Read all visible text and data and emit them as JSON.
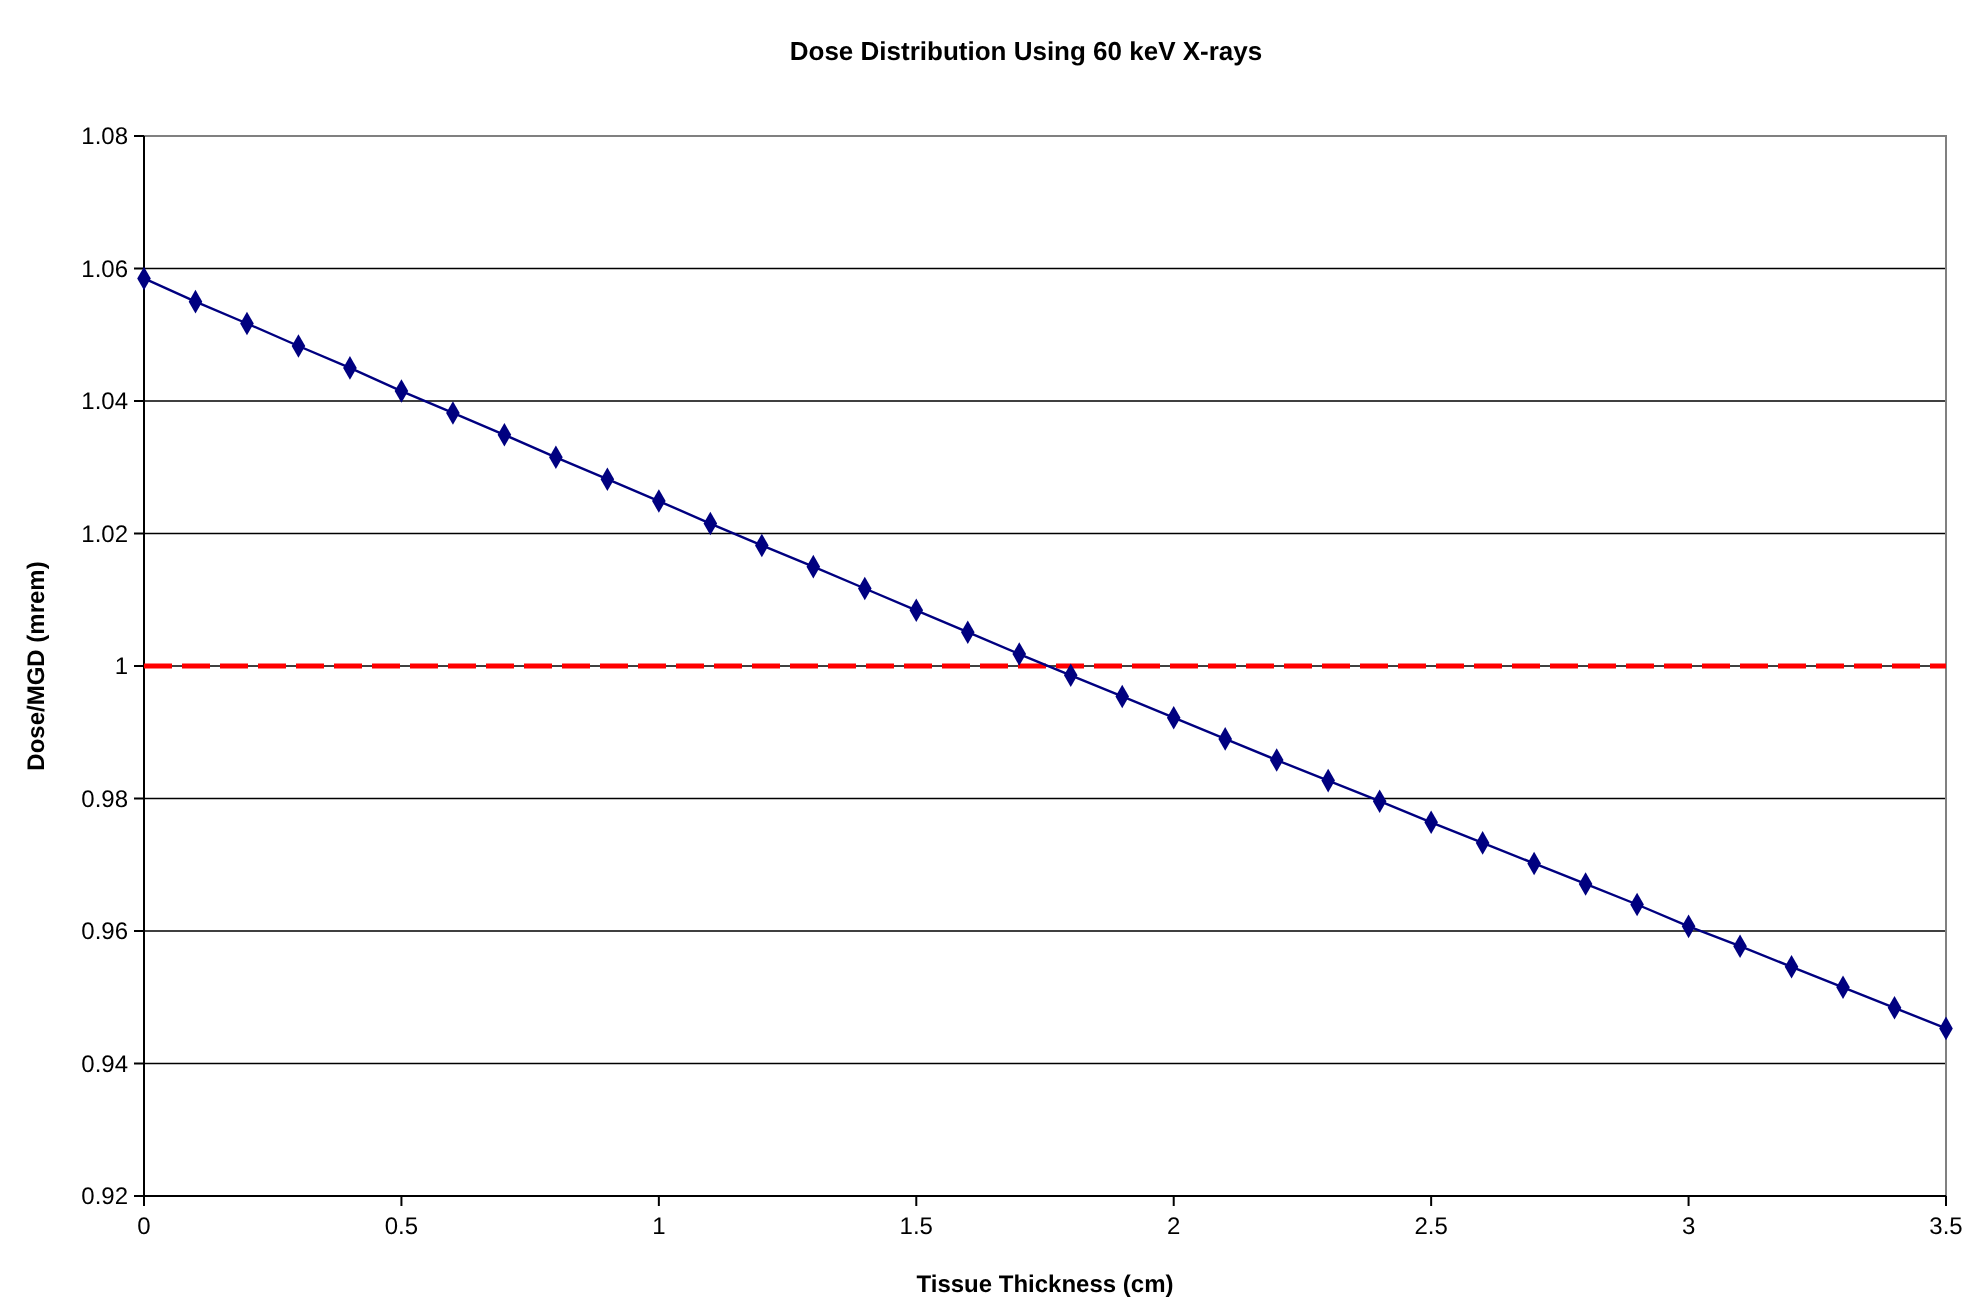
{
  "chart_data": {
    "type": "line",
    "title": "Dose Distribution Using 60 keV X-rays",
    "xlabel": "Tissue Thickness (cm)",
    "ylabel": "Dose/MGD (mrem)",
    "x": [
      0,
      0.1,
      0.2,
      0.3,
      0.4,
      0.5,
      0.6,
      0.7,
      0.8,
      0.9,
      1.0,
      1.1,
      1.2,
      1.3,
      1.4,
      1.5,
      1.6,
      1.7,
      1.8,
      1.9,
      2.0,
      2.1,
      2.2,
      2.3,
      2.4,
      2.5,
      2.6,
      2.7,
      2.8,
      2.9,
      3.0,
      3.1,
      3.2,
      3.3,
      3.4,
      3.5
    ],
    "series": [
      {
        "color": "#000080",
        "values": [
          1.0585,
          1.055,
          1.0517,
          1.0483,
          1.045,
          1.0415,
          1.0382,
          1.0349,
          1.0315,
          1.0282,
          1.0249,
          1.0215,
          1.0182,
          1.015,
          1.0117,
          1.0084,
          1.0051,
          1.0018,
          0.9986,
          0.9954,
          0.9922,
          0.989,
          0.9858,
          0.9827,
          0.9796,
          0.9764,
          0.9733,
          0.9702,
          0.9671,
          0.964,
          0.9607,
          0.9577,
          0.9546,
          0.9515,
          0.9484,
          0.9453
        ]
      }
    ],
    "xlim": [
      0,
      3.5
    ],
    "xticks": [
      0,
      0.5,
      1,
      1.5,
      2,
      2.5,
      3,
      3.5
    ],
    "ylim": [
      0.92,
      1.08
    ],
    "yticks": [
      {
        "value": 0.92,
        "label": "0.92"
      },
      {
        "value": 0.94,
        "label": "0.94"
      },
      {
        "value": 0.96,
        "label": "0.96"
      },
      {
        "value": 0.98,
        "label": "0.98"
      },
      1,
      {
        "value": 1.02,
        "label": "1.02"
      },
      {
        "value": 1.04,
        "label": "1.04"
      },
      {
        "value": 1.06,
        "label": "1.06"
      },
      {
        "value": 1.08,
        "label": "1.08"
      }
    ],
    "ref_lines": [
      {
        "axis": "y",
        "value": 1,
        "color": "#ff0000",
        "line_style": "dashed"
      }
    ],
    "grid": "y",
    "marker": "diamond",
    "line_style": "solid"
  }
}
